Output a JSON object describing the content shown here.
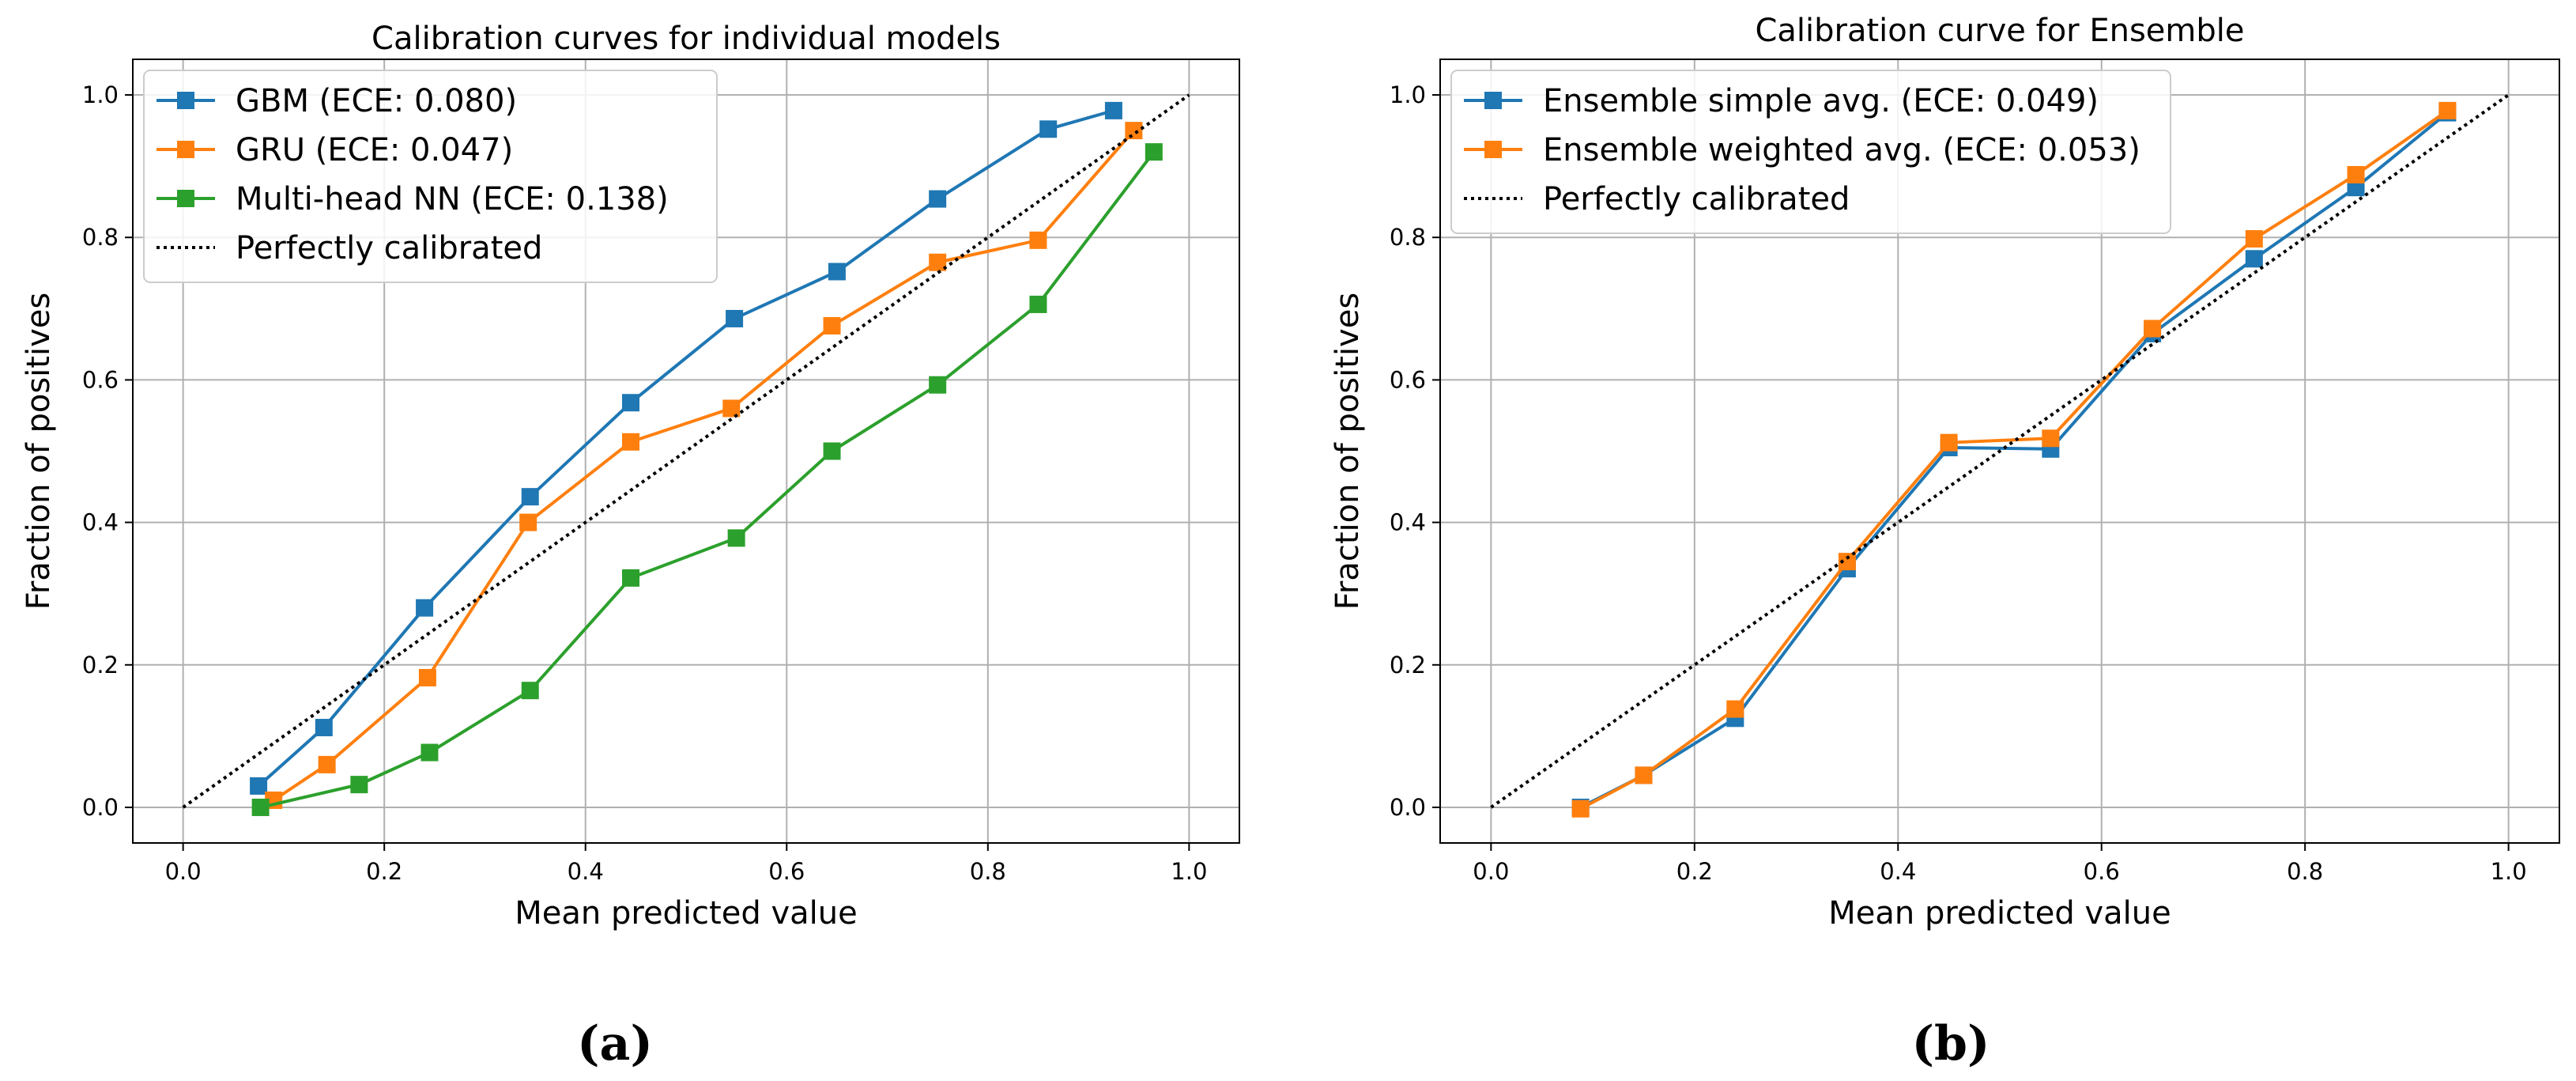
{
  "chart_data": [
    {
      "type": "line",
      "panel_label": "(a)",
      "title": "Calibration curves for individual models",
      "xlabel": "Mean predicted value",
      "ylabel": "Fraction of positives",
      "xlim": [
        -0.05,
        1.05
      ],
      "ylim": [
        -0.05,
        1.05
      ],
      "xticks": [
        "0.0",
        "0.2",
        "0.4",
        "0.6",
        "0.8",
        "1.0"
      ],
      "yticks": [
        "0.0",
        "0.2",
        "0.4",
        "0.6",
        "0.8",
        "1.0"
      ],
      "grid": true,
      "legend_position": "top-left",
      "series": [
        {
          "name": "GBM (ECE: 0.080)",
          "color": "#1f77b4",
          "x": [
            0.075,
            0.14,
            0.24,
            0.345,
            0.445,
            0.548,
            0.65,
            0.75,
            0.86,
            0.925
          ],
          "y": [
            0.03,
            0.112,
            0.28,
            0.436,
            0.568,
            0.686,
            0.752,
            0.854,
            0.952,
            0.978
          ]
        },
        {
          "name": "GRU (ECE: 0.047)",
          "color": "#ff7f0e",
          "x": [
            0.09,
            0.143,
            0.243,
            0.343,
            0.445,
            0.545,
            0.645,
            0.75,
            0.85,
            0.945
          ],
          "y": [
            0.01,
            0.06,
            0.182,
            0.4,
            0.513,
            0.56,
            0.676,
            0.765,
            0.796,
            0.95
          ]
        },
        {
          "name": "Multi-head NN (ECE: 0.138)",
          "color": "#2ca02c",
          "x": [
            0.077,
            0.175,
            0.245,
            0.345,
            0.445,
            0.55,
            0.645,
            0.75,
            0.85,
            0.965
          ],
          "y": [
            0.0,
            0.032,
            0.077,
            0.164,
            0.322,
            0.378,
            0.5,
            0.593,
            0.706,
            0.92
          ]
        },
        {
          "name": "Perfectly calibrated",
          "color": "#000000",
          "style": "dotted",
          "x": [
            0.0,
            1.0
          ],
          "y": [
            0.0,
            1.0
          ]
        }
      ]
    },
    {
      "type": "line",
      "panel_label": "(b)",
      "title": "Calibration curve for Ensemble",
      "xlabel": "Mean predicted value",
      "ylabel": "Fraction of positives",
      "xlim": [
        -0.05,
        1.05
      ],
      "ylim": [
        -0.05,
        1.05
      ],
      "xticks": [
        "0.0",
        "0.2",
        "0.4",
        "0.6",
        "0.8",
        "1.0"
      ],
      "yticks": [
        "0.0",
        "0.2",
        "0.4",
        "0.6",
        "0.8",
        "1.0"
      ],
      "grid": true,
      "legend_position": "top-left",
      "series": [
        {
          "name": "Ensemble simple avg. (ECE: 0.049)",
          "color": "#1f77b4",
          "x": [
            0.088,
            0.15,
            0.24,
            0.35,
            0.45,
            0.55,
            0.65,
            0.75,
            0.85,
            0.94
          ],
          "y": [
            0.0,
            0.045,
            0.125,
            0.335,
            0.505,
            0.503,
            0.665,
            0.77,
            0.87,
            0.975
          ]
        },
        {
          "name": "Ensemble weighted avg. (ECE: 0.053)",
          "color": "#ff7f0e",
          "x": [
            0.088,
            0.15,
            0.24,
            0.35,
            0.45,
            0.55,
            0.65,
            0.75,
            0.85,
            0.94
          ],
          "y": [
            -0.002,
            0.045,
            0.138,
            0.345,
            0.512,
            0.518,
            0.672,
            0.798,
            0.888,
            0.978
          ]
        },
        {
          "name": "Perfectly calibrated",
          "color": "#000000",
          "style": "dotted",
          "x": [
            0.0,
            1.0
          ],
          "y": [
            0.0,
            1.0
          ]
        }
      ]
    }
  ]
}
